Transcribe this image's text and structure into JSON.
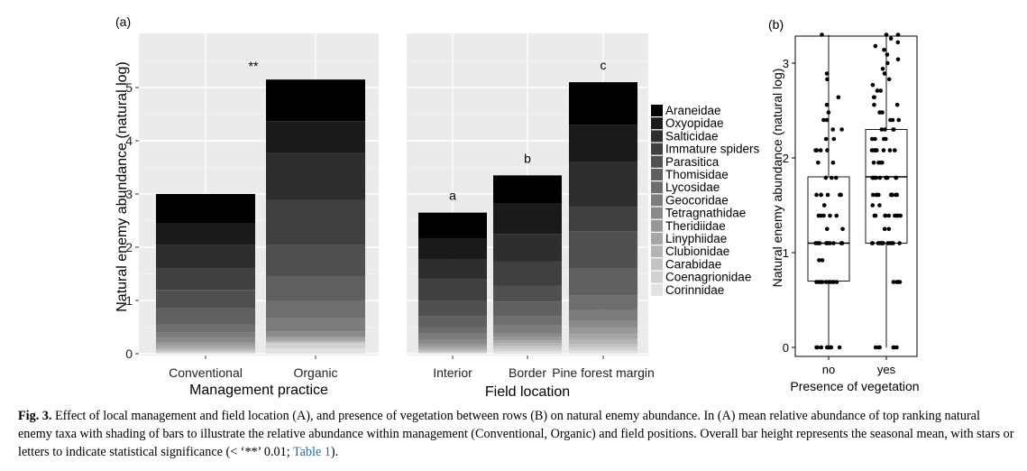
{
  "panel_a": {
    "label": "(a)",
    "ylabel": "Natural enemy abundance (natural log)",
    "yticks": [
      "0",
      "1",
      "2",
      "3",
      "4",
      "5"
    ],
    "left": {
      "xlabel": "Management practice",
      "categories": [
        "Conventional",
        "Organic"
      ],
      "significance": "**"
    },
    "right": {
      "xlabel": "Field location",
      "categories": [
        "Interior",
        "Border",
        "Pine forest margin"
      ],
      "letters": [
        "a",
        "b",
        "c"
      ]
    },
    "legend": [
      "Araneidae",
      "Oxyopidae",
      "Salticidae",
      "Immature spiders",
      "Parasitica",
      "Thomisidae",
      "Lycosidae",
      "Geocoridae",
      "Tetragnathidae",
      "Theridiidae",
      "Linyphiidae",
      "Clubionidae",
      "Carabidae",
      "Coenagrionidae",
      "Corinnidae"
    ],
    "legend_colors": [
      "#000000",
      "#1a1a1a",
      "#2e2e2e",
      "#404040",
      "#505050",
      "#606060",
      "#6e6e6e",
      "#7c7c7c",
      "#8a8a8a",
      "#989898",
      "#a6a6a6",
      "#b4b4b4",
      "#c3c3c3",
      "#d2d2d2",
      "#e2e2e2"
    ]
  },
  "panel_b": {
    "label": "(b)",
    "ylabel": "Natural enemy abundance (natural log)",
    "xlabel": "Presence of vegetation",
    "yticks": [
      "0",
      "1",
      "2",
      "3"
    ],
    "categories": [
      "no",
      "yes"
    ]
  },
  "chart_data": [
    {
      "type": "bar",
      "title": "",
      "xlabel": "Management practice",
      "ylabel": "Natural enemy abundance (natural log)",
      "ylim": [
        0,
        5.5
      ],
      "categories": [
        "Conventional",
        "Organic"
      ],
      "stacked": true,
      "annotation": "**",
      "series": [
        {
          "name": "Araneidae",
          "values": [
            0.55,
            0.78
          ]
        },
        {
          "name": "Oxyopidae",
          "values": [
            0.4,
            0.6
          ]
        },
        {
          "name": "Salticidae",
          "values": [
            0.45,
            0.88
          ]
        },
        {
          "name": "Immature spiders",
          "values": [
            0.4,
            0.84
          ]
        },
        {
          "name": "Parasitica",
          "values": [
            0.35,
            0.6
          ]
        },
        {
          "name": "Thomisidae",
          "values": [
            0.3,
            0.45
          ]
        },
        {
          "name": "Lycosidae",
          "values": [
            0.15,
            0.33
          ]
        },
        {
          "name": "Geocoridae",
          "values": [
            0.1,
            0.25
          ]
        },
        {
          "name": "Tetragnathidae",
          "values": [
            0.08,
            0.1
          ]
        },
        {
          "name": "Theridiidae",
          "values": [
            0.06,
            0.03
          ]
        },
        {
          "name": "Linyphiidae",
          "values": [
            0.05,
            0.05
          ]
        },
        {
          "name": "Clubionidae",
          "values": [
            0.04,
            0.02
          ]
        },
        {
          "name": "Carabidae",
          "values": [
            0.03,
            0.02
          ]
        },
        {
          "name": "Coenagrionidae",
          "values": [
            0.03,
            0.1
          ]
        },
        {
          "name": "Corinnidae",
          "values": [
            0.01,
            0.1
          ]
        }
      ]
    },
    {
      "type": "bar",
      "title": "",
      "xlabel": "Field location",
      "ylabel": "",
      "ylim": [
        0,
        5.5
      ],
      "categories": [
        "Interior",
        "Border",
        "Pine forest margin"
      ],
      "stacked": true,
      "annotations": [
        "a",
        "b",
        "c"
      ],
      "series": [
        {
          "name": "Araneidae",
          "values": [
            0.48,
            0.53,
            0.8
          ]
        },
        {
          "name": "Oxyopidae",
          "values": [
            0.4,
            0.57,
            0.7
          ]
        },
        {
          "name": "Salticidae",
          "values": [
            0.37,
            0.52,
            0.85
          ]
        },
        {
          "name": "Immature spiders",
          "values": [
            0.4,
            0.45,
            0.45
          ]
        },
        {
          "name": "Parasitica",
          "values": [
            0.3,
            0.3,
            0.7
          ]
        },
        {
          "name": "Thomisidae",
          "values": [
            0.2,
            0.28,
            0.5
          ]
        },
        {
          "name": "Lycosidae",
          "values": [
            0.12,
            0.17,
            0.28
          ]
        },
        {
          "name": "Geocoridae",
          "values": [
            0.12,
            0.15,
            0.2
          ]
        },
        {
          "name": "Tetragnathidae",
          "values": [
            0.08,
            0.07,
            0.12
          ]
        },
        {
          "name": "Theridiidae",
          "values": [
            0.05,
            0.06,
            0.12
          ]
        },
        {
          "name": "Linyphiidae",
          "values": [
            0.04,
            0.05,
            0.1
          ]
        },
        {
          "name": "Clubionidae",
          "values": [
            0.03,
            0.05,
            0.1
          ]
        },
        {
          "name": "Carabidae",
          "values": [
            0.03,
            0.05,
            0.06
          ]
        },
        {
          "name": "Coenagrionidae",
          "values": [
            0.02,
            0.05,
            0.06
          ]
        },
        {
          "name": "Corinnidae",
          "values": [
            0.01,
            0.05,
            0.06
          ]
        }
      ]
    },
    {
      "type": "box",
      "title": "",
      "xlabel": "Presence of vegetation",
      "ylabel": "Natural enemy abundance (natural log)",
      "ylim": [
        -0.05,
        3.3
      ],
      "categories": [
        "no",
        "yes"
      ],
      "boxes": [
        {
          "category": "no",
          "min": 0,
          "q1": 0.7,
          "median": 1.1,
          "q3": 1.8,
          "max": 3.3
        },
        {
          "category": "yes",
          "min": 0,
          "q1": 1.1,
          "median": 1.8,
          "q3": 2.3,
          "max": 3.3
        }
      ],
      "points": {
        "no": [
          0,
          0,
          0,
          0,
          0,
          0,
          0,
          0,
          0,
          0.69,
          0.69,
          0.69,
          0.69,
          0.69,
          0.69,
          0.69,
          0.69,
          0.69,
          0.69,
          1.1,
          1.1,
          1.1,
          1.1,
          1.1,
          1.1,
          1.1,
          1.1,
          1.1,
          1.1,
          1.1,
          1.1,
          0.92,
          0.92,
          1.25,
          1.25,
          1.39,
          1.39,
          1.39,
          1.39,
          1.39,
          1.5,
          1.5,
          1.61,
          1.61,
          1.61,
          1.61,
          1.61,
          1.61,
          1.79,
          1.79,
          1.79,
          1.95,
          1.95,
          2.08,
          2.08,
          2.08,
          2.08,
          2.2,
          2.2,
          2.3,
          2.3,
          2.4,
          2.4,
          2.48,
          2.56,
          2.64,
          2.83,
          2.89,
          3.3
        ],
        "yes": [
          0,
          0,
          0,
          0,
          0,
          0,
          0.69,
          0.69,
          0.69,
          0.69,
          1.1,
          1.1,
          1.1,
          1.1,
          1.1,
          1.1,
          1.1,
          1.1,
          1.1,
          1.1,
          1.1,
          1.1,
          1.1,
          1.25,
          1.25,
          1.39,
          1.39,
          1.39,
          1.39,
          1.39,
          1.39,
          1.39,
          1.39,
          1.39,
          1.5,
          1.5,
          1.61,
          1.61,
          1.61,
          1.61,
          1.61,
          1.61,
          1.61,
          1.61,
          1.61,
          1.79,
          1.79,
          1.79,
          1.79,
          1.79,
          1.79,
          1.79,
          1.79,
          1.79,
          1.79,
          1.95,
          1.95,
          1.95,
          1.95,
          2.08,
          2.08,
          2.08,
          2.08,
          2.08,
          2.08,
          2.08,
          2.2,
          2.2,
          2.2,
          2.2,
          2.3,
          2.3,
          2.3,
          2.3,
          2.4,
          2.4,
          2.4,
          2.48,
          2.48,
          2.56,
          2.56,
          2.64,
          2.64,
          2.71,
          2.71,
          2.77,
          2.83,
          2.89,
          2.94,
          3.0,
          3.04,
          3.09,
          3.14,
          3.18,
          3.22,
          3.26,
          3.3,
          3.3
        ]
      }
    }
  ],
  "caption": {
    "lead": "Fig. 3.",
    "text": " Effect of local management and field location (A), and presence of vegetation between rows (B) on natural enemy abundance. In (A) mean relative abundance of top ranking natural enemy taxa with shading of bars to illustrate the relative abundance within management (Conventional, Organic) and field positions. Overall bar height represents the seasonal mean, with stars or letters to indicate statistical significance (< ‘**’ 0.01; ",
    "ref": "Table 1",
    "tail": ")."
  }
}
